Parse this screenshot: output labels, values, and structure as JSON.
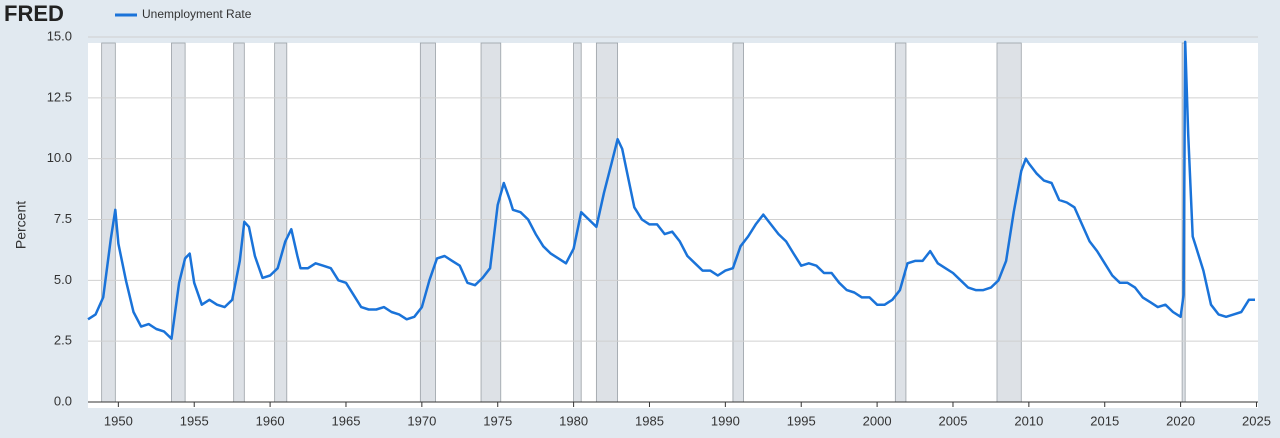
{
  "logo": "FRED",
  "chart_data": {
    "type": "line",
    "y_label": "Percent",
    "xlim": [
      1948,
      2025.1
    ],
    "xticks": [
      1950,
      1955,
      1960,
      1965,
      1970,
      1975,
      1980,
      1985,
      1990,
      1995,
      2000,
      2005,
      2010,
      2015,
      2020,
      2025
    ],
    "ylim": [
      0,
      15
    ],
    "yticks": [
      {
        "value": 0,
        "label": "0.0"
      },
      2.5,
      {
        "value": 5,
        "label": "5.0"
      },
      7.5,
      {
        "value": 10,
        "label": "10.0"
      },
      12.5,
      {
        "value": 15,
        "label": "15.0"
      }
    ],
    "grid": true,
    "recessions": [
      [
        1948.9,
        1949.8
      ],
      [
        1953.5,
        1954.4
      ],
      [
        1957.6,
        1958.3
      ],
      [
        1960.3,
        1961.1
      ],
      [
        1969.9,
        1970.9
      ],
      [
        1973.9,
        1975.2
      ],
      [
        1980.0,
        1980.5
      ],
      [
        1981.5,
        1982.9
      ],
      [
        1990.5,
        1991.2
      ],
      [
        2001.2,
        2001.9
      ],
      [
        2007.9,
        2009.5
      ],
      [
        2020.1,
        2020.3
      ]
    ],
    "recession_color": "#dde1e6",
    "x": [
      1948.0,
      1948.5,
      1949.0,
      1949.5,
      1949.8,
      1950.0,
      1950.5,
      1951.0,
      1951.5,
      1952.0,
      1952.5,
      1953.0,
      1953.5,
      1954.0,
      1954.4,
      1954.7,
      1955.0,
      1955.5,
      1956.0,
      1956.5,
      1957.0,
      1957.5,
      1958.0,
      1958.3,
      1958.6,
      1959.0,
      1959.5,
      1960.0,
      1960.5,
      1961.0,
      1961.4,
      1961.8,
      1962.0,
      1962.5,
      1963.0,
      1963.5,
      1964.0,
      1964.5,
      1965.0,
      1965.5,
      1966.0,
      1966.5,
      1967.0,
      1967.5,
      1968.0,
      1968.5,
      1969.0,
      1969.5,
      1970.0,
      1970.5,
      1971.0,
      1971.5,
      1972.0,
      1972.5,
      1973.0,
      1973.5,
      1974.0,
      1974.5,
      1975.0,
      1975.4,
      1975.8,
      1976.0,
      1976.5,
      1977.0,
      1977.5,
      1978.0,
      1978.5,
      1979.0,
      1979.5,
      1980.0,
      1980.5,
      1981.0,
      1981.5,
      1982.0,
      1982.5,
      1982.9,
      1983.2,
      1983.5,
      1984.0,
      1984.5,
      1985.0,
      1985.5,
      1986.0,
      1986.5,
      1987.0,
      1987.5,
      1988.0,
      1988.5,
      1989.0,
      1989.5,
      1990.0,
      1990.5,
      1991.0,
      1991.5,
      1992.0,
      1992.5,
      1993.0,
      1993.5,
      1994.0,
      1994.5,
      1995.0,
      1995.5,
      1996.0,
      1996.5,
      1997.0,
      1997.5,
      1998.0,
      1998.5,
      1999.0,
      1999.5,
      2000.0,
      2000.5,
      2001.0,
      2001.5,
      2002.0,
      2002.5,
      2003.0,
      2003.5,
      2004.0,
      2004.5,
      2005.0,
      2005.5,
      2006.0,
      2006.5,
      2007.0,
      2007.5,
      2008.0,
      2008.5,
      2009.0,
      2009.5,
      2009.8,
      2010.0,
      2010.5,
      2011.0,
      2011.5,
      2012.0,
      2012.5,
      2013.0,
      2013.5,
      2014.0,
      2014.5,
      2015.0,
      2015.5,
      2016.0,
      2016.5,
      2017.0,
      2017.5,
      2018.0,
      2018.5,
      2019.0,
      2019.5,
      2020.0,
      2020.2,
      2020.3,
      2020.5,
      2020.8,
      2021.0,
      2021.5,
      2022.0,
      2022.5,
      2023.0,
      2023.5,
      2024.0,
      2024.5,
      2024.9
    ],
    "series": [
      {
        "name": "Unemployment Rate",
        "color": "#1a73d9",
        "values": [
          3.4,
          3.6,
          4.3,
          6.7,
          7.9,
          6.5,
          5.0,
          3.7,
          3.1,
          3.2,
          3.0,
          2.9,
          2.6,
          4.9,
          5.9,
          6.1,
          4.9,
          4.0,
          4.2,
          4.0,
          3.9,
          4.2,
          5.8,
          7.4,
          7.2,
          6.0,
          5.1,
          5.2,
          5.5,
          6.6,
          7.1,
          6.0,
          5.5,
          5.5,
          5.7,
          5.6,
          5.5,
          5.0,
          4.9,
          4.4,
          3.9,
          3.8,
          3.8,
          3.9,
          3.7,
          3.6,
          3.4,
          3.5,
          3.9,
          5.0,
          5.9,
          6.0,
          5.8,
          5.6,
          4.9,
          4.8,
          5.1,
          5.5,
          8.1,
          9.0,
          8.3,
          7.9,
          7.8,
          7.5,
          6.9,
          6.4,
          6.1,
          5.9,
          5.7,
          6.3,
          7.8,
          7.5,
          7.2,
          8.6,
          9.8,
          10.8,
          10.4,
          9.5,
          8.0,
          7.5,
          7.3,
          7.3,
          6.9,
          7.0,
          6.6,
          6.0,
          5.7,
          5.4,
          5.4,
          5.2,
          5.4,
          5.5,
          6.4,
          6.8,
          7.3,
          7.7,
          7.3,
          6.9,
          6.6,
          6.1,
          5.6,
          5.7,
          5.6,
          5.3,
          5.3,
          4.9,
          4.6,
          4.5,
          4.3,
          4.3,
          4.0,
          4.0,
          4.2,
          4.6,
          5.7,
          5.8,
          5.8,
          6.2,
          5.7,
          5.5,
          5.3,
          5.0,
          4.7,
          4.6,
          4.6,
          4.7,
          5.0,
          5.8,
          7.8,
          9.5,
          10.0,
          9.8,
          9.4,
          9.1,
          9.0,
          8.3,
          8.2,
          8.0,
          7.3,
          6.6,
          6.2,
          5.7,
          5.2,
          4.9,
          4.9,
          4.7,
          4.3,
          4.1,
          3.9,
          4.0,
          3.7,
          3.5,
          4.4,
          14.8,
          11.0,
          6.8,
          6.4,
          5.4,
          4.0,
          3.6,
          3.5,
          3.6,
          3.7,
          4.2,
          4.2
        ]
      }
    ]
  }
}
